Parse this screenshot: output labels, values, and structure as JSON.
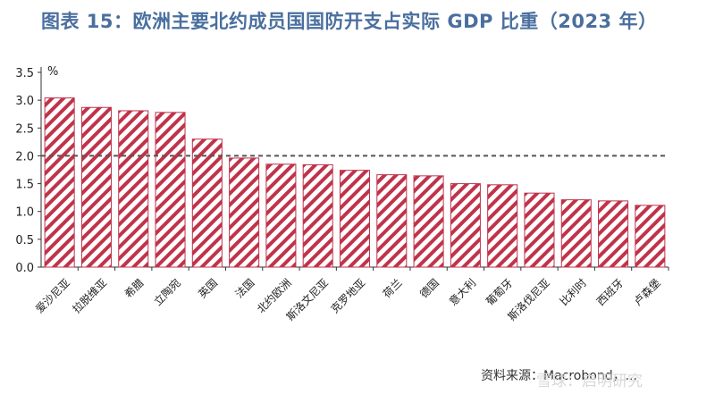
{
  "title": "图表 15：欧洲主要北约成员国国防开支占实际 GDP 比重（2023 年）",
  "source": "资料来源：Macrobond，...",
  "watermark": "雪球：启明研究",
  "colors": {
    "bar": "#c0334a",
    "title": "#4a6f9f",
    "reference_line": "#555555"
  },
  "chart_data": {
    "type": "bar",
    "categories": [
      "爱沙尼亚",
      "拉脱维亚",
      "希腊",
      "立陶宛",
      "英国",
      "法国",
      "北约欧洲",
      "斯洛文尼亚",
      "克罗地亚",
      "荷兰",
      "德国",
      "意大利",
      "葡萄牙",
      "斯洛伐尼亚",
      "比利时",
      "西班牙",
      "卢森堡"
    ],
    "values": [
      3.04,
      2.87,
      2.81,
      2.78,
      2.3,
      1.96,
      1.85,
      1.84,
      1.74,
      1.66,
      1.64,
      1.5,
      1.48,
      1.33,
      1.21,
      1.19,
      1.11
    ],
    "ylim": [
      0,
      3.5
    ],
    "yticks": [
      "0.0",
      "0.5",
      "1.0",
      "1.5",
      "2.0",
      "2.5",
      "3.0",
      "3.5"
    ],
    "unit_label": "%",
    "reference_line": 2.0,
    "grid": false
  }
}
